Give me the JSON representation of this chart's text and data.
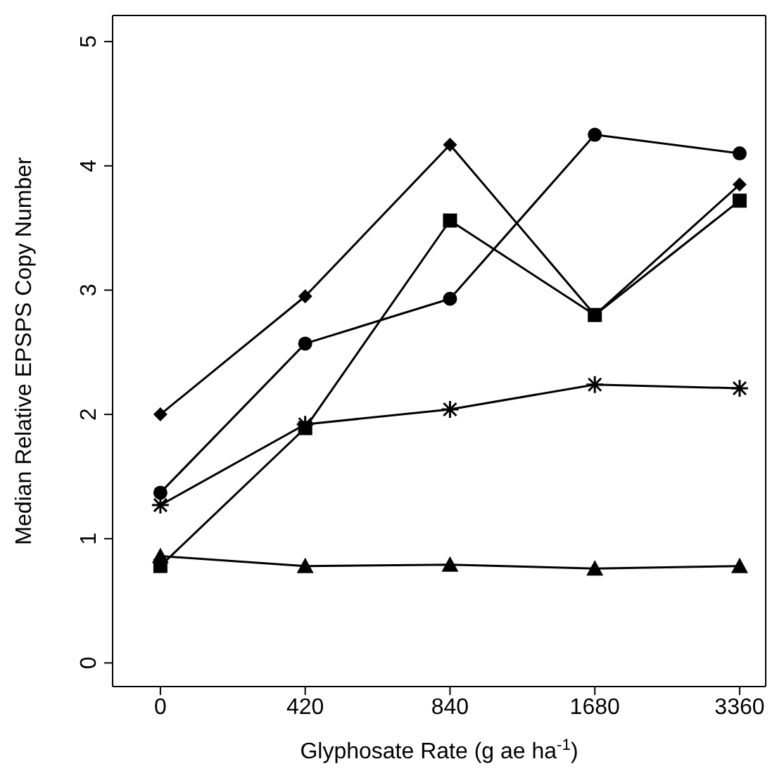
{
  "chart_data": {
    "type": "line",
    "xlabel": "Glyphosate Rate (g ae ha$^{-1}$)",
    "ylabel": "Median Relative EPSPS Copy Number",
    "categories": [
      "0",
      "420",
      "840",
      "1680",
      "3360"
    ],
    "ylim": [
      -0.19,
      5.21
    ],
    "yticks": [
      0,
      1,
      2,
      3,
      4,
      5
    ],
    "line_style": "solid",
    "series": [
      {
        "color": "#000000",
        "marker": "diamond",
        "values": [
          2.0,
          2.95,
          4.17,
          2.8,
          3.85
        ]
      },
      {
        "color": "#000000",
        "marker": "circle",
        "values": [
          1.37,
          2.57,
          2.93,
          4.25,
          4.1
        ]
      },
      {
        "color": "#000000",
        "marker": "square",
        "values": [
          0.78,
          1.89,
          3.56,
          2.8,
          3.72
        ]
      },
      {
        "color": "#000000",
        "marker": "cross",
        "values": [
          1.27,
          1.92,
          2.04,
          2.24,
          2.21
        ]
      },
      {
        "color": "#000000",
        "marker": "triangle",
        "values": [
          0.86,
          0.78,
          0.79,
          0.76,
          0.78
        ]
      }
    ]
  }
}
